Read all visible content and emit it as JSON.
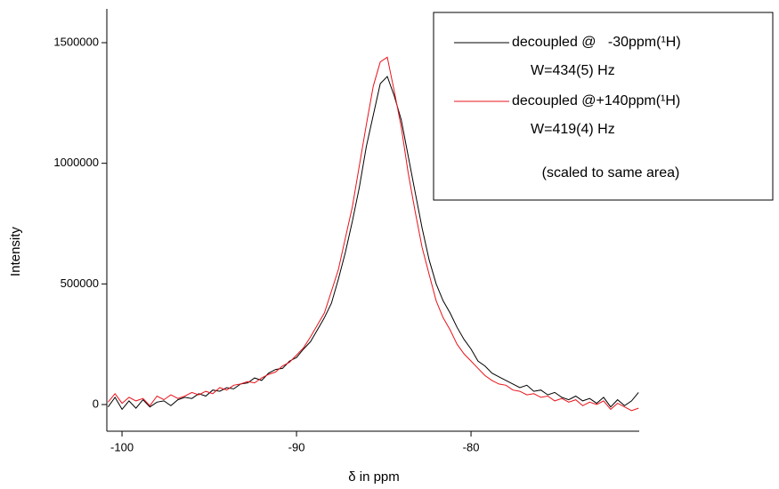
{
  "chart_data": {
    "type": "line",
    "xlabel": "δ in ppm",
    "ylabel": "Intensity",
    "x": [
      -100.8,
      -100.4,
      -100,
      -99.6,
      -99.2,
      -98.8,
      -98.4,
      -98,
      -97.6,
      -97.2,
      -96.8,
      -96.4,
      -96,
      -95.6,
      -95.2,
      -94.8,
      -94.4,
      -94,
      -93.6,
      -93.2,
      -92.8,
      -92.4,
      -92,
      -91.6,
      -91.2,
      -90.8,
      -90.4,
      -90,
      -89.6,
      -89.2,
      -88.8,
      -88.4,
      -88,
      -87.6,
      -87.2,
      -86.8,
      -86.4,
      -86,
      -85.6,
      -85.2,
      -84.8,
      -84.4,
      -84,
      -83.6,
      -83.2,
      -82.8,
      -82.4,
      -82,
      -81.6,
      -81.2,
      -80.8,
      -80.4,
      -80,
      -79.6,
      -79.2,
      -78.8,
      -78.4,
      -78,
      -77.6,
      -77.2,
      -76.8,
      -76.4,
      -76,
      -75.6,
      -75.2,
      -74.8,
      -74.4,
      -74,
      -73.6,
      -73.2,
      -72.8,
      -72.4,
      -72,
      -71.6,
      -71.2,
      -70.8,
      -70.4
    ],
    "series": [
      {
        "name": "decoupled @   -30ppm(¹H)",
        "color": "#000000",
        "values": [
          -10000,
          30000,
          -20000,
          15000,
          -15000,
          20000,
          -10000,
          10000,
          15000,
          -5000,
          20000,
          30000,
          25000,
          45000,
          35000,
          60000,
          55000,
          70000,
          65000,
          85000,
          90000,
          110000,
          100000,
          130000,
          145000,
          150000,
          180000,
          195000,
          230000,
          260000,
          310000,
          360000,
          420000,
          520000,
          630000,
          760000,
          900000,
          1070000,
          1200000,
          1330000,
          1360000,
          1280000,
          1180000,
          1030000,
          880000,
          730000,
          600000,
          500000,
          430000,
          380000,
          320000,
          270000,
          230000,
          180000,
          160000,
          130000,
          115000,
          100000,
          85000,
          70000,
          80000,
          55000,
          60000,
          40000,
          50000,
          30000,
          20000,
          35000,
          15000,
          25000,
          5000,
          30000,
          -10000,
          20000,
          -5000,
          15000,
          50000
        ]
      },
      {
        "name": "decoupled @+140ppm(¹H)",
        "color": "#e8131b",
        "values": [
          10000,
          45000,
          5000,
          30000,
          15000,
          25000,
          -5000,
          35000,
          20000,
          40000,
          25000,
          35000,
          50000,
          40000,
          55000,
          45000,
          70000,
          60000,
          80000,
          85000,
          95000,
          90000,
          110000,
          125000,
          135000,
          160000,
          175000,
          205000,
          235000,
          280000,
          330000,
          380000,
          470000,
          560000,
          690000,
          820000,
          990000,
          1160000,
          1320000,
          1420000,
          1440000,
          1300000,
          1150000,
          960000,
          800000,
          650000,
          540000,
          430000,
          360000,
          310000,
          250000,
          210000,
          180000,
          150000,
          120000,
          100000,
          85000,
          80000,
          60000,
          55000,
          40000,
          45000,
          30000,
          35000,
          15000,
          25000,
          10000,
          20000,
          -5000,
          10000,
          0,
          15000,
          -20000,
          5000,
          -10000,
          -25000,
          -15000
        ]
      }
    ],
    "annotations": [
      "W=434(5) Hz",
      "W=419(4) Hz",
      "(scaled to same area)"
    ],
    "xlim": [
      -100.87,
      -70.36
    ],
    "xticks": [
      -100,
      -90,
      -80
    ],
    "ylim": [
      -110600,
      1640000
    ],
    "yticks": [
      0,
      500000,
      1000000,
      1500000
    ],
    "grid": false
  }
}
